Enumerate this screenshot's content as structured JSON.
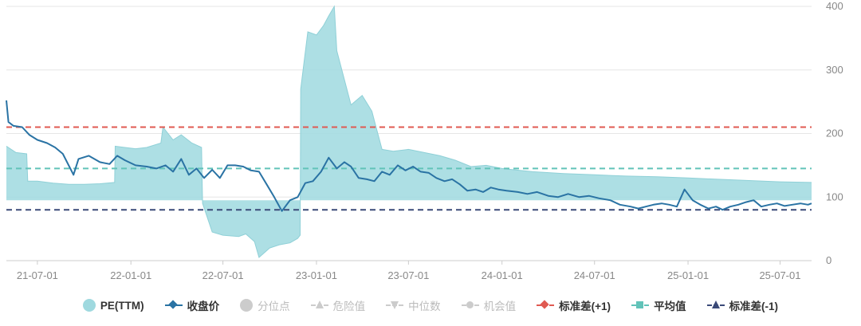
{
  "chart_data": {
    "type": "line",
    "title": "",
    "x_tick_labels": [
      "21-07-01",
      "22-01-01",
      "22-07-01",
      "23-01-01",
      "23-07-01",
      "24-01-01",
      "24-07-01",
      "25-01-01",
      "25-07-01"
    ],
    "x_range": [
      "2021-05-01",
      "2025-09-01"
    ],
    "y_tick_labels": [
      "0",
      "100",
      "200",
      "300",
      "400"
    ],
    "ylim": [
      0,
      400
    ],
    "grid": true,
    "legend_position": "bottom",
    "legend": [
      {
        "key": "pe",
        "label": "PE(TTM)",
        "active": true
      },
      {
        "key": "close",
        "label": "收盘价",
        "active": true
      },
      {
        "key": "quantile",
        "label": "分位点",
        "active": false
      },
      {
        "key": "danger",
        "label": "危险值",
        "active": false
      },
      {
        "key": "median",
        "label": "中位数",
        "active": false
      },
      {
        "key": "opportunity",
        "label": "机会值",
        "active": false
      },
      {
        "key": "std_plus",
        "label": "标准差(+1)",
        "active": true
      },
      {
        "key": "mean",
        "label": "平均值",
        "active": true
      },
      {
        "key": "std_minus",
        "label": "标准差(-1)",
        "active": true
      }
    ],
    "colors": {
      "pe_fill": "#9fd9df",
      "pe_line": "#8fd0d7",
      "close": "#2a73a4",
      "std_plus": "#e05a52",
      "mean": "#62c3b9",
      "std_minus": "#3b4a78",
      "grid": "#e6e6e6",
      "inactive": "#cccccc"
    },
    "reference_lines": {
      "std_plus": 210,
      "mean": 145,
      "std_minus": 80
    },
    "pe_baseline": 95,
    "series": [
      {
        "name": "PE(TTM)",
        "type": "area",
        "x": [
          "2021-05-01",
          "2021-05-20",
          "2021-06-10",
          "2021-06-12",
          "2021-07-01",
          "2021-08-01",
          "2021-09-01",
          "2021-10-01",
          "2021-11-01",
          "2021-11-30",
          "2021-12-01",
          "2021-12-20",
          "2022-01-10",
          "2022-02-01",
          "2022-03-01",
          "2022-03-05",
          "2022-03-25",
          "2022-04-10",
          "2022-05-01",
          "2022-05-20",
          "2022-05-22",
          "2022-06-10",
          "2022-07-01",
          "2022-08-01",
          "2022-08-15",
          "2022-09-01",
          "2022-09-10",
          "2022-10-01",
          "2022-10-20",
          "2022-11-10",
          "2022-11-25",
          "2022-11-30",
          "2022-12-01",
          "2022-12-15",
          "2023-01-01",
          "2023-01-15",
          "2023-01-25",
          "2023-02-05",
          "2023-02-10",
          "2023-02-20",
          "2023-03-10",
          "2023-04-01",
          "2023-04-20",
          "2023-04-25",
          "2023-05-10",
          "2023-06-01",
          "2023-07-01",
          "2023-08-01",
          "2023-09-01",
          "2023-10-01",
          "2023-11-01",
          "2023-12-01",
          "2024-01-01",
          "2024-03-01",
          "2024-05-01",
          "2024-07-01",
          "2024-09-01",
          "2024-11-01",
          "2025-01-01",
          "2025-03-01",
          "2025-05-01",
          "2025-07-01",
          "2025-09-01"
        ],
        "values": [
          180,
          170,
          168,
          125,
          125,
          122,
          120,
          120,
          121,
          123,
          180,
          178,
          176,
          178,
          185,
          210,
          190,
          198,
          185,
          178,
          90,
          45,
          40,
          38,
          42,
          30,
          5,
          20,
          25,
          28,
          35,
          40,
          270,
          360,
          355,
          370,
          385,
          400,
          330,
          300,
          245,
          260,
          235,
          220,
          175,
          172,
          175,
          170,
          165,
          158,
          148,
          150,
          145,
          140,
          137,
          135,
          133,
          132,
          130,
          128,
          126,
          124,
          123
        ]
      },
      {
        "name": "收盘价",
        "type": "line",
        "x": [
          "2021-05-01",
          "2021-05-05",
          "2021-05-15",
          "2021-06-01",
          "2021-06-15",
          "2021-07-01",
          "2021-07-20",
          "2021-08-05",
          "2021-08-20",
          "2021-09-10",
          "2021-09-20",
          "2021-10-10",
          "2021-11-01",
          "2021-11-20",
          "2021-12-05",
          "2021-12-20",
          "2022-01-10",
          "2022-02-01",
          "2022-02-20",
          "2022-03-10",
          "2022-03-25",
          "2022-04-10",
          "2022-04-25",
          "2022-05-10",
          "2022-05-25",
          "2022-06-10",
          "2022-06-25",
          "2022-07-10",
          "2022-07-25",
          "2022-08-10",
          "2022-08-25",
          "2022-09-10",
          "2022-09-25",
          "2022-10-10",
          "2022-10-25",
          "2022-11-10",
          "2022-11-25",
          "2022-12-10",
          "2022-12-25",
          "2023-01-10",
          "2023-01-25",
          "2023-02-10",
          "2023-02-25",
          "2023-03-10",
          "2023-03-25",
          "2023-04-10",
          "2023-04-25",
          "2023-05-10",
          "2023-05-25",
          "2023-06-10",
          "2023-06-25",
          "2023-07-10",
          "2023-07-25",
          "2023-08-10",
          "2023-08-25",
          "2023-09-10",
          "2023-09-25",
          "2023-10-10",
          "2023-10-25",
          "2023-11-10",
          "2023-11-25",
          "2023-12-10",
          "2023-12-25",
          "2024-01-10",
          "2024-02-01",
          "2024-02-20",
          "2024-03-10",
          "2024-04-01",
          "2024-04-20",
          "2024-05-10",
          "2024-06-01",
          "2024-06-20",
          "2024-07-10",
          "2024-08-01",
          "2024-08-20",
          "2024-09-10",
          "2024-09-25",
          "2024-10-10",
          "2024-10-25",
          "2024-11-10",
          "2024-11-25",
          "2024-12-10",
          "2024-12-25",
          "2025-01-10",
          "2025-01-25",
          "2025-02-10",
          "2025-02-25",
          "2025-03-10",
          "2025-03-25",
          "2025-04-10",
          "2025-04-25",
          "2025-05-10",
          "2025-05-25",
          "2025-06-10",
          "2025-06-25",
          "2025-07-10",
          "2025-07-25",
          "2025-08-10",
          "2025-08-25",
          "2025-09-01"
        ],
        "values": [
          252,
          218,
          212,
          210,
          198,
          190,
          185,
          178,
          168,
          135,
          160,
          165,
          155,
          152,
          165,
          158,
          150,
          148,
          145,
          150,
          140,
          160,
          135,
          145,
          130,
          143,
          130,
          150,
          150,
          148,
          142,
          140,
          120,
          100,
          78,
          95,
          100,
          122,
          125,
          140,
          162,
          145,
          155,
          148,
          130,
          128,
          125,
          140,
          135,
          150,
          142,
          148,
          140,
          138,
          130,
          125,
          128,
          120,
          110,
          112,
          108,
          115,
          112,
          110,
          108,
          105,
          108,
          102,
          100,
          105,
          100,
          102,
          98,
          95,
          88,
          85,
          82,
          85,
          88,
          90,
          88,
          85,
          112,
          95,
          88,
          82,
          85,
          80,
          85,
          88,
          92,
          95,
          85,
          88,
          90,
          86,
          88,
          90,
          88,
          90
        ]
      }
    ]
  }
}
